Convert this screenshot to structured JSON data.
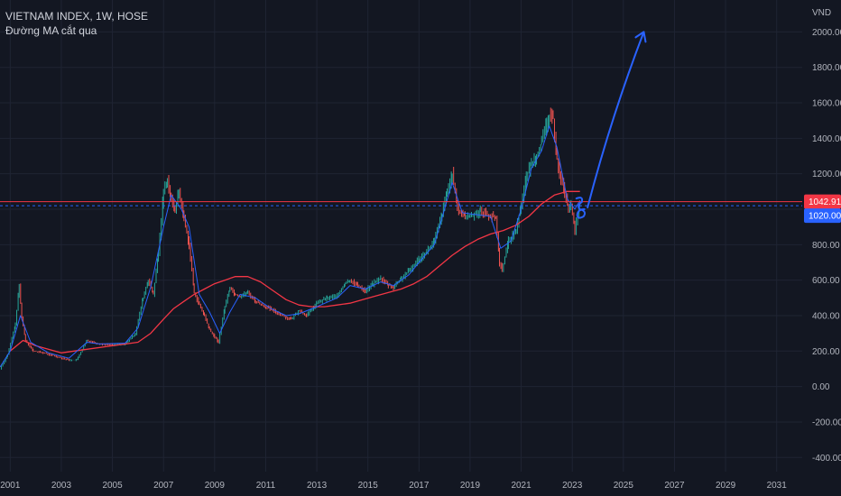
{
  "legend": {
    "symbol_line": "VIETNAM INDEX, 1W, HOSE",
    "indicator_line": "Đường MA cắt qua"
  },
  "colors": {
    "background": "#131722",
    "grid": "#1f2433",
    "candle_up": "#26a69a",
    "candle_down": "#ef5350",
    "fast_ma": "#2962ff",
    "slow_ma": "#f23645",
    "drawing": "#2962ff",
    "axis_text": "#b2b5be"
  },
  "chart_data": {
    "type": "line",
    "title": "VIETNAM INDEX, 1W, HOSE",
    "ylabel": "",
    "xlabel": "",
    "currency_label": "VND",
    "x_range": [
      2000.6,
      2032.0
    ],
    "ylim": [
      -480,
      2180
    ],
    "grid": true,
    "y_ticks": [
      2000,
      1800,
      1600,
      1400,
      1200,
      1000,
      800,
      600,
      400,
      200,
      0,
      -200,
      -400
    ],
    "y_tick_labels": [
      "2000.00",
      "1800.00",
      "1600.00",
      "1400.00",
      "1200.00",
      "",
      "800.00",
      "600.00",
      "400.00",
      "200.00",
      "0.00",
      "-200.00",
      "-400.00"
    ],
    "x_ticks": [
      2001,
      2003,
      2005,
      2007,
      2009,
      2011,
      2013,
      2015,
      2017,
      2019,
      2021,
      2023,
      2025,
      2027,
      2029,
      2031
    ],
    "x_tick_labels": [
      "2001",
      "2003",
      "2005",
      "2007",
      "2009",
      "2011",
      "2013",
      "2015",
      "2017",
      "2019",
      "2021",
      "2023",
      "2025",
      "2027",
      "2029",
      "2031"
    ],
    "series": [
      {
        "name": "",
        "role": "price",
        "x": [
          2000.6,
          2000.9,
          2001.2,
          2001.35,
          2001.45,
          2001.6,
          2001.9,
          2002.3,
          2002.8,
          2003.3,
          2003.6,
          2004.0,
          2004.5,
          2005.0,
          2005.5,
          2005.9,
          2006.2,
          2006.4,
          2006.6,
          2006.8,
          2007.0,
          2007.15,
          2007.3,
          2007.45,
          2007.6,
          2007.8,
          2008.0,
          2008.2,
          2008.4,
          2008.6,
          2008.8,
          2009.0,
          2009.15,
          2009.4,
          2009.6,
          2009.8,
          2010.0,
          2010.3,
          2010.6,
          2011.0,
          2011.4,
          2011.8,
          2012.0,
          2012.3,
          2012.6,
          2013.0,
          2013.4,
          2013.8,
          2014.1,
          2014.3,
          2014.6,
          2014.9,
          2015.2,
          2015.5,
          2015.8,
          2016.0,
          2016.3,
          2016.6,
          2017.0,
          2017.3,
          2017.6,
          2017.9,
          2018.1,
          2018.3,
          2018.5,
          2018.8,
          2019.0,
          2019.4,
          2019.8,
          2020.0,
          2020.15,
          2020.25,
          2020.5,
          2020.8,
          2021.0,
          2021.2,
          2021.4,
          2021.6,
          2021.8,
          2022.0,
          2022.1,
          2022.25,
          2022.4,
          2022.5,
          2022.7,
          2022.85,
          2022.95,
          2023.1,
          2023.3
        ],
        "values": [
          100,
          180,
          350,
          570,
          390,
          260,
          200,
          190,
          170,
          150,
          150,
          260,
          240,
          235,
          240,
          300,
          500,
          600,
          520,
          750,
          1100,
          1170,
          1050,
          1000,
          1100,
          950,
          800,
          530,
          460,
          400,
          320,
          280,
          250,
          450,
          560,
          520,
          510,
          530,
          480,
          450,
          420,
          390,
          380,
          430,
          400,
          470,
          500,
          510,
          580,
          600,
          570,
          540,
          580,
          610,
          570,
          560,
          610,
          650,
          720,
          760,
          820,
          970,
          1100,
          1200,
          1000,
          960,
          960,
          990,
          960,
          950,
          700,
          660,
          820,
          880,
          1030,
          1180,
          1260,
          1300,
          1380,
          1480,
          1520,
          1510,
          1280,
          1200,
          1100,
          1000,
          1020,
          880,
          1042.91
        ]
      },
      {
        "name": "",
        "role": "fast_ma",
        "x": [
          2000.6,
          2001.0,
          2001.4,
          2001.8,
          2002.5,
          2003.3,
          2004.0,
          2004.5,
          2005.5,
          2006.0,
          2006.5,
          2007.0,
          2007.3,
          2007.7,
          2008.0,
          2008.4,
          2008.8,
          2009.2,
          2009.6,
          2010.0,
          2010.6,
          2011.2,
          2011.8,
          2012.3,
          2013.0,
          2013.8,
          2014.3,
          2014.9,
          2015.5,
          2016.0,
          2016.6,
          2017.0,
          2017.6,
          2018.0,
          2018.3,
          2018.7,
          2019.2,
          2019.8,
          2020.2,
          2020.6,
          2021.0,
          2021.4,
          2021.8,
          2022.1,
          2022.4,
          2022.8,
          2023.1,
          2023.3
        ],
        "values": [
          110,
          200,
          400,
          250,
          190,
          160,
          250,
          240,
          245,
          330,
          560,
          900,
          1080,
          1000,
          900,
          520,
          420,
          300,
          420,
          520,
          500,
          440,
          400,
          410,
          450,
          500,
          570,
          550,
          590,
          570,
          630,
          700,
          800,
          1000,
          1150,
          980,
          970,
          960,
          780,
          820,
          1000,
          1230,
          1330,
          1470,
          1350,
          1060,
          1000,
          1050
        ]
      },
      {
        "name": "",
        "role": "slow_ma",
        "x": [
          2001.0,
          2001.5,
          2002.0,
          2003.0,
          2004.0,
          2005.0,
          2006.0,
          2006.5,
          2007.0,
          2007.4,
          2007.8,
          2008.2,
          2008.6,
          2009.0,
          2009.4,
          2009.8,
          2010.3,
          2010.8,
          2011.3,
          2011.8,
          2012.3,
          2012.8,
          2013.3,
          2013.8,
          2014.3,
          2014.8,
          2015.3,
          2015.8,
          2016.3,
          2016.8,
          2017.3,
          2017.8,
          2018.3,
          2018.8,
          2019.3,
          2019.8,
          2020.3,
          2020.8,
          2021.3,
          2021.8,
          2022.3,
          2022.8,
          2023.3
        ],
        "values": [
          200,
          260,
          230,
          190,
          210,
          230,
          250,
          300,
          380,
          440,
          480,
          520,
          550,
          580,
          600,
          620,
          620,
          590,
          540,
          490,
          460,
          450,
          450,
          460,
          470,
          490,
          510,
          530,
          550,
          580,
          620,
          680,
          740,
          790,
          830,
          860,
          880,
          910,
          960,
          1030,
          1080,
          1100,
          1100
        ]
      }
    ],
    "annotations": {
      "current_price": 1042.91,
      "current_price_label": "1042.91",
      "marker_price": 1020.0,
      "marker_price_label": "1020.00",
      "arrow": {
        "x": [
          2023.6,
          2025.8
        ],
        "y": [
          1010,
          2000
        ]
      },
      "hand_drawn_loop": {
        "x": 2023.3,
        "y": 1010
      }
    }
  }
}
